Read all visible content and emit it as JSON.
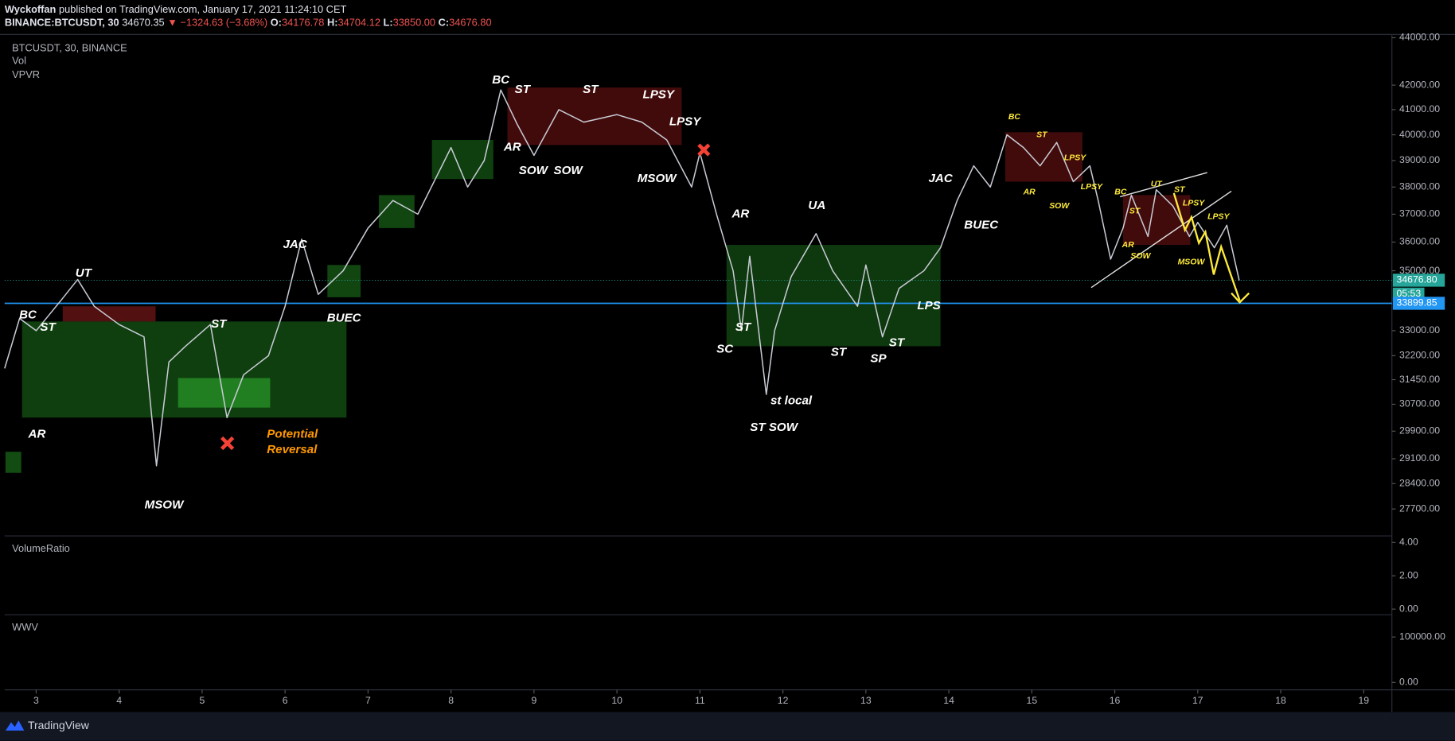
{
  "header": {
    "author": "Wyckoffan",
    "published": "published on TradingView.com, January 17, 2021 11:24:10 CET",
    "symbol": "BINANCE:BTCUSDT, 30",
    "last": "34670.35",
    "change": "−1324.63 (−3.68%)",
    "ohlc": [
      {
        "label": "O:",
        "value": "34176.78"
      },
      {
        "label": "H:",
        "value": "34704.12"
      },
      {
        "label": "L:",
        "value": "33850.00"
      },
      {
        "label": "C:",
        "value": "34676.80"
      }
    ]
  },
  "chart_data": {
    "type": "line",
    "title": "BTCUSDT, 30, BINANCE",
    "indicators": [
      "Vol",
      "VPVR"
    ],
    "color": "#c8cbd4",
    "log_scale": true,
    "x": [
      2.62,
      2.8,
      3.0,
      3.3,
      3.5,
      3.7,
      4.0,
      4.3,
      4.45,
      4.6,
      4.8,
      5.1,
      5.3,
      5.5,
      5.8,
      6.0,
      6.2,
      6.4,
      6.7,
      7.0,
      7.3,
      7.6,
      8.0,
      8.2,
      8.4,
      8.6,
      8.8,
      9.0,
      9.3,
      9.6,
      10.0,
      10.3,
      10.6,
      10.9,
      11.0,
      11.2,
      11.4,
      11.5,
      11.6,
      11.8,
      11.9,
      12.1,
      12.4,
      12.6,
      12.9,
      13.0,
      13.2,
      13.4,
      13.7,
      13.9,
      14.1,
      14.3,
      14.5,
      14.7,
      14.9,
      15.1,
      15.3,
      15.5,
      15.7,
      15.8,
      15.95,
      16.1,
      16.2,
      16.4,
      16.5,
      16.7,
      16.9,
      17.0,
      17.2,
      17.35,
      17.5
    ],
    "values": [
      31800,
      33400,
      33000,
      34000,
      34700,
      33800,
      33200,
      32800,
      28900,
      32000,
      32500,
      33200,
      30300,
      31600,
      32200,
      33800,
      36100,
      34200,
      35000,
      36500,
      37500,
      37000,
      39500,
      38000,
      39000,
      41800,
      40400,
      39200,
      41000,
      40500,
      40800,
      40500,
      39800,
      38000,
      39300,
      37000,
      35000,
      33000,
      35500,
      31000,
      33000,
      34800,
      36300,
      35000,
      33800,
      35200,
      32800,
      34400,
      35000,
      35800,
      37500,
      38800,
      38000,
      40000,
      39500,
      38800,
      39700,
      38200,
      38800,
      37500,
      35400,
      36500,
      37700,
      36200,
      37900,
      37300,
      36200,
      36700,
      35800,
      36600,
      34670
    ],
    "xlim": [
      2.62,
      19.34
    ],
    "xticks": [
      3,
      4,
      5,
      6,
      7,
      8,
      9,
      10,
      11,
      12,
      13,
      14,
      15,
      16,
      17,
      18,
      19
    ],
    "ylim": [
      27000,
      44100
    ],
    "yticks": [
      {
        "value": 44000,
        "label": "44000.00"
      },
      {
        "value": 42000,
        "label": "42000.00"
      },
      {
        "value": 41000,
        "label": "41000.00"
      },
      {
        "value": 40000,
        "label": "40000.00"
      },
      {
        "value": 39000,
        "label": "39000.00"
      },
      {
        "value": 38000,
        "label": "38000.00"
      },
      {
        "value": 37000,
        "label": "37000.00"
      },
      {
        "value": 36000,
        "label": "36000.00"
      },
      {
        "value": 35000,
        "label": "35000.00"
      },
      {
        "value": 33000,
        "label": "33000.00"
      },
      {
        "value": 32200,
        "label": "32200.00"
      },
      {
        "value": 31450,
        "label": "31450.00"
      },
      {
        "value": 30700,
        "label": "30700.00"
      },
      {
        "value": 29900,
        "label": "29900.00"
      },
      {
        "value": 29100,
        "label": "29100.00"
      },
      {
        "value": 28400,
        "label": "28400.00"
      },
      {
        "value": 27700,
        "label": "27700.00"
      }
    ],
    "price_lines": [
      {
        "value": 34676.8,
        "label": "34676.80",
        "color": "#26a69a",
        "countdown": "05:53"
      },
      {
        "value": 33899.85,
        "label": "33899.85",
        "color": "#2196f3"
      }
    ],
    "zones": [
      {
        "x": [
          2.83,
          6.74
        ],
        "y": [
          30300,
          33300
        ],
        "color": "rgba(34,139,34,0.45)"
      },
      {
        "x": [
          4.71,
          5.82
        ],
        "y": [
          30600,
          31500
        ],
        "color": "rgba(50,180,50,0.55)"
      },
      {
        "x": [
          3.32,
          4.44
        ],
        "y": [
          33300,
          33800
        ],
        "color": "rgba(150,30,30,0.55)"
      },
      {
        "x": [
          6.51,
          6.91
        ],
        "y": [
          34100,
          35200
        ],
        "color": "rgba(34,139,34,0.5)"
      },
      {
        "x": [
          7.13,
          7.56
        ],
        "y": [
          36500,
          37700
        ],
        "color": "rgba(34,139,34,0.5)"
      },
      {
        "x": [
          7.77,
          8.51
        ],
        "y": [
          38300,
          39800
        ],
        "color": "rgba(34,139,34,0.45)"
      },
      {
        "x": [
          8.68,
          10.78
        ],
        "y": [
          39600,
          41900
        ],
        "color": "rgba(120,20,20,0.55)"
      },
      {
        "x": [
          11.32,
          13.9
        ],
        "y": [
          32500,
          35900
        ],
        "color": "rgba(34,139,34,0.4)"
      },
      {
        "x": [
          14.68,
          15.61
        ],
        "y": [
          38200,
          40100
        ],
        "color": "rgba(120,20,20,0.55)"
      },
      {
        "x": [
          16.1,
          16.91
        ],
        "y": [
          35900,
          37700
        ],
        "color": "rgba(120,20,20,0.55)"
      },
      {
        "x": [
          2.63,
          2.82
        ],
        "y": [
          28700,
          29300
        ],
        "color": "rgba(34,139,34,0.55)"
      }
    ],
    "annotations": [
      {
        "text": "BC",
        "x": 2.9,
        "y": 33500,
        "color": "#ffffff"
      },
      {
        "text": "ST",
        "x": 3.14,
        "y": 33100,
        "color": "#ffffff"
      },
      {
        "text": "UT",
        "x": 3.57,
        "y": 34900,
        "color": "#ffffff"
      },
      {
        "text": "AR",
        "x": 3.01,
        "y": 29800,
        "color": "#ffffff"
      },
      {
        "text": "ST",
        "x": 5.2,
        "y": 33200,
        "color": "#ffffff"
      },
      {
        "text": "MSOW",
        "x": 4.54,
        "y": 27800,
        "color": "#ffffff"
      },
      {
        "text": "Potential",
        "x": 5.78,
        "y": 29800,
        "color": "#ff9800"
      },
      {
        "text": "Reversal",
        "x": 5.78,
        "y": 29350,
        "color": "#ff9800"
      },
      {
        "text": "JAC",
        "x": 6.12,
        "y": 35900,
        "color": "#ffffff"
      },
      {
        "text": "BUEC",
        "x": 6.71,
        "y": 33400,
        "color": "#ffffff"
      },
      {
        "text": "BC",
        "x": 8.6,
        "y": 42200,
        "color": "#ffffff"
      },
      {
        "text": "ST",
        "x": 8.86,
        "y": 41800,
        "color": "#ffffff"
      },
      {
        "text": "ST",
        "x": 9.68,
        "y": 41800,
        "color": "#ffffff"
      },
      {
        "text": "LPSY",
        "x": 10.5,
        "y": 41600,
        "color": "#ffffff"
      },
      {
        "text": "LPSY",
        "x": 10.82,
        "y": 40500,
        "color": "#ffffff"
      },
      {
        "text": "AR",
        "x": 8.74,
        "y": 39500,
        "color": "#ffffff"
      },
      {
        "text": "SOW",
        "x": 8.99,
        "y": 38600,
        "color": "#ffffff"
      },
      {
        "text": "SOW",
        "x": 9.41,
        "y": 38600,
        "color": "#ffffff"
      },
      {
        "text": "MSOW",
        "x": 10.48,
        "y": 38300,
        "color": "#ffffff"
      },
      {
        "text": "AR",
        "x": 11.49,
        "y": 37000,
        "color": "#ffffff"
      },
      {
        "text": "UA",
        "x": 12.41,
        "y": 37300,
        "color": "#ffffff"
      },
      {
        "text": "SC",
        "x": 11.3,
        "y": 32400,
        "color": "#ffffff"
      },
      {
        "text": "ST",
        "x": 11.52,
        "y": 33100,
        "color": "#ffffff"
      },
      {
        "text": "st local",
        "x": 12.1,
        "y": 30800,
        "color": "#ffffff"
      },
      {
        "text": "ST SOW",
        "x": 11.89,
        "y": 30000,
        "color": "#ffffff"
      },
      {
        "text": "ST",
        "x": 12.67,
        "y": 32300,
        "color": "#ffffff"
      },
      {
        "text": "SP",
        "x": 13.15,
        "y": 32100,
        "color": "#ffffff"
      },
      {
        "text": "ST",
        "x": 13.37,
        "y": 32600,
        "color": "#ffffff"
      },
      {
        "text": "LPS",
        "x": 13.76,
        "y": 33800,
        "color": "#ffffff"
      },
      {
        "text": "JAC",
        "x": 13.9,
        "y": 38300,
        "color": "#ffffff"
      },
      {
        "text": "BUEC",
        "x": 14.39,
        "y": 36600,
        "color": "#ffffff"
      },
      {
        "text": "BC",
        "x": 14.79,
        "y": 40700,
        "color": "#ffeb3b"
      },
      {
        "text": "ST",
        "x": 15.12,
        "y": 40000,
        "color": "#ffeb3b"
      },
      {
        "text": "LPSY",
        "x": 15.52,
        "y": 39100,
        "color": "#ffeb3b"
      },
      {
        "text": "AR",
        "x": 14.97,
        "y": 37800,
        "color": "#ffeb3b"
      },
      {
        "text": "SOW",
        "x": 15.33,
        "y": 37300,
        "color": "#ffeb3b"
      },
      {
        "text": "LPSY",
        "x": 15.72,
        "y": 38000,
        "color": "#ffeb3b"
      },
      {
        "text": "BC",
        "x": 16.07,
        "y": 37800,
        "color": "#ffeb3b"
      },
      {
        "text": "UT",
        "x": 16.5,
        "y": 38100,
        "color": "#ffeb3b"
      },
      {
        "text": "ST",
        "x": 16.78,
        "y": 37900,
        "color": "#ffeb3b"
      },
      {
        "text": "ST",
        "x": 16.24,
        "y": 37100,
        "color": "#ffeb3b"
      },
      {
        "text": "LPSY",
        "x": 16.95,
        "y": 37400,
        "color": "#ffeb3b"
      },
      {
        "text": "LPSY",
        "x": 17.25,
        "y": 36900,
        "color": "#ffeb3b"
      },
      {
        "text": "AR",
        "x": 16.16,
        "y": 35900,
        "color": "#ffeb3b"
      },
      {
        "text": "SOW",
        "x": 16.31,
        "y": 35500,
        "color": "#ffeb3b"
      },
      {
        "text": "MSOW",
        "x": 16.92,
        "y": 35300,
        "color": "#ffeb3b"
      }
    ],
    "panels": [
      {
        "name": "VolumeRatio",
        "ylim": [
          -0.17,
          4.28
        ],
        "yticks": [
          {
            "value": 4,
            "label": "4.00"
          },
          {
            "value": 2,
            "label": "2.00"
          },
          {
            "value": 0,
            "label": "0.00"
          }
        ]
      },
      {
        "name": "WWV",
        "ylim": [
          -12200,
          144900
        ],
        "yticks": [
          {
            "value": 100000,
            "label": "100000.00"
          },
          {
            "value": 0,
            "label": "0.00"
          }
        ]
      }
    ]
  },
  "footer": {
    "brand": "TradingView"
  }
}
